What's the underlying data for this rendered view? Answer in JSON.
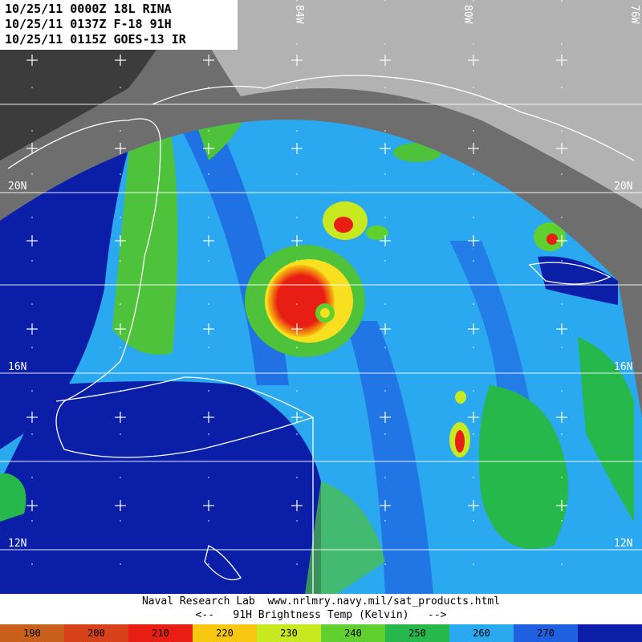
{
  "header": {
    "line1": "10/25/11 0000Z 18L RINA",
    "line2": "10/25/11 0137Z F-18 91H",
    "line3": "10/25/11 0115Z GOES-13 IR"
  },
  "lat_labels": {
    "lat20": "20N",
    "lat16": "16N",
    "lat12": "12N"
  },
  "lon_labels": {
    "lon84": "84W",
    "lon80": "80W",
    "lon76": "76W"
  },
  "footer": {
    "credit": "Naval Research Lab  www.nrlmry.navy.mil/sat_products.html",
    "product": "<--   91H Brightness Temp (Kelvin)   -->"
  },
  "colorbar": [
    {
      "label": "190",
      "color": "#c8601c"
    },
    {
      "label": "200",
      "color": "#d8421a"
    },
    {
      "label": "210",
      "color": "#e81d14"
    },
    {
      "label": "220",
      "color": "#f8c810"
    },
    {
      "label": "230",
      "color": "#c8e820"
    },
    {
      "label": "240",
      "color": "#5fd030"
    },
    {
      "label": "250",
      "color": "#26b84a"
    },
    {
      "label": "260",
      "color": "#2aa8f0"
    },
    {
      "label": "270",
      "color": "#1e60e0"
    },
    {
      "label": "",
      "color": "#0a1ea8"
    }
  ],
  "colors": {
    "ocean_deep": "#0a1ea8",
    "ocean_mid": "#1e60e0",
    "ocean_light": "#2aa8f0",
    "land_green": "#4ec23a",
    "core_red": "#e81d14",
    "ring_yellow": "#f8e020",
    "ir_gray": "#6e6e6e"
  }
}
